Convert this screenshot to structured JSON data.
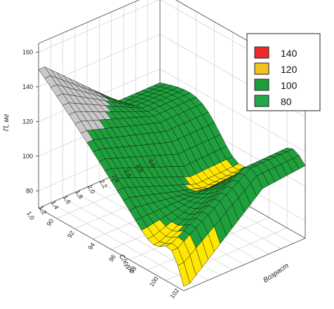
{
  "chart_data": {
    "type": "surface3d",
    "title": "",
    "zlabel": "П, мг",
    "ylabel": "С/курс",
    "xlabel": "Возраст",
    "z_ticks": [
      "80",
      "100",
      "120",
      "140",
      "160"
    ],
    "y_ticks": [
      "1,0",
      "1,2",
      "1,4",
      "1,6",
      "1,8",
      "2,0",
      "2,2",
      "2,4",
      "2,6",
      "2,8",
      "3,0"
    ],
    "x_ticks": [
      "90",
      "92",
      "94",
      "96",
      "98",
      "100",
      "102"
    ],
    "zlim": [
      70,
      165
    ],
    "xlim": [
      89,
      103
    ],
    "ylim": [
      1.0,
      3.0
    ],
    "legend": {
      "placement": "top-right",
      "items": [
        {
          "label": "140",
          "color": "#ee2a2a"
        },
        {
          "label": "120",
          "color": "#f2c21c"
        },
        {
          "label": "100",
          "color": "#1e9e3a"
        },
        {
          "label": "80",
          "color": "#22a84a"
        }
      ]
    },
    "surface_colors": {
      "high": "#c8c8c8",
      "mid": "#1ea03c",
      "low": "#ffe800",
      "grid": "#111111"
    }
  }
}
